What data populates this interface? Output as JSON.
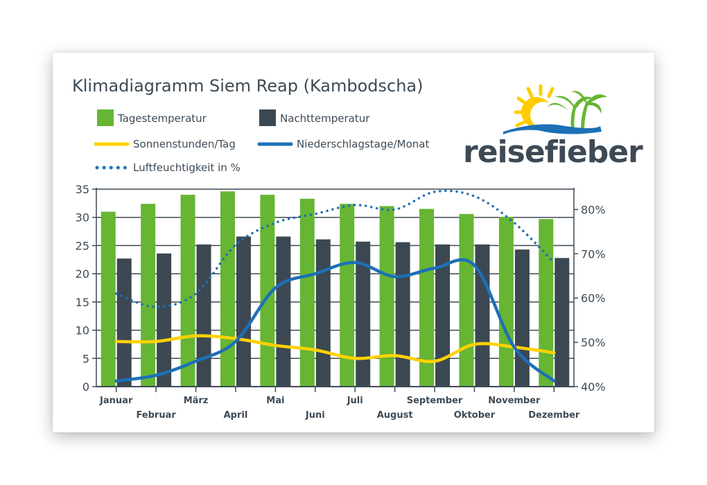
{
  "chart_data": {
    "type": "bar",
    "title": "Klimadiagramm Siem Reap (Kambodscha)",
    "categories": [
      "Januar",
      "Februar",
      "März",
      "April",
      "Mai",
      "Juni",
      "Juli",
      "August",
      "September",
      "Oktober",
      "November",
      "Dezember"
    ],
    "series": [
      {
        "name": "Tagestemperatur",
        "type": "bar",
        "axis": "left",
        "color": "#66b533",
        "values": [
          31.0,
          32.4,
          34.0,
          34.6,
          34.0,
          33.3,
          32.4,
          32.0,
          31.5,
          30.6,
          30.1,
          29.7
        ]
      },
      {
        "name": "Nachttemperatur",
        "type": "bar",
        "axis": "left",
        "color": "#3b4852",
        "values": [
          22.7,
          23.6,
          25.2,
          26.6,
          26.6,
          26.1,
          25.7,
          25.6,
          25.2,
          25.2,
          24.3,
          22.8
        ]
      },
      {
        "name": "Sonnenstunden/Tag",
        "type": "line",
        "axis": "left",
        "color": "#ffd200",
        "values": [
          8.0,
          8.0,
          9.0,
          8.5,
          7.3,
          6.5,
          5.0,
          5.5,
          4.5,
          7.5,
          7.0,
          6.0
        ]
      },
      {
        "name": "Niederschlagstage/Monat",
        "type": "line",
        "axis": "left",
        "color": "#1d70b7",
        "values": [
          1.0,
          2.0,
          4.5,
          8.0,
          17.5,
          20.0,
          22.0,
          19.5,
          21.0,
          21.5,
          7.0,
          1.0
        ]
      },
      {
        "name": "Luftfeuchtigkeit in %",
        "type": "line",
        "style": "dotted",
        "axis": "right",
        "color": "#1d70b7",
        "values": [
          61,
          58,
          61,
          72,
          77,
          79,
          81,
          80,
          84,
          83,
          77,
          68
        ]
      }
    ],
    "y_left": {
      "min": 0,
      "max": 35,
      "ticks": [
        0,
        5,
        10,
        15,
        20,
        25,
        30,
        35
      ]
    },
    "y_right": {
      "min": 40,
      "max": 84.6,
      "ticks": [
        40,
        50,
        60,
        70,
        80
      ],
      "tick_labels": [
        "40%",
        "50%",
        "60%",
        "70%",
        "80%"
      ]
    },
    "legend_placement": "top-left",
    "grid": "horizontal"
  },
  "logo": {
    "text": "reisefieber",
    "colors": {
      "sun": "#ffcc00",
      "palm": "#66b533",
      "wave": "#1d70b7",
      "text": "#3d4a55"
    }
  },
  "axis_color": "#3d4a55"
}
